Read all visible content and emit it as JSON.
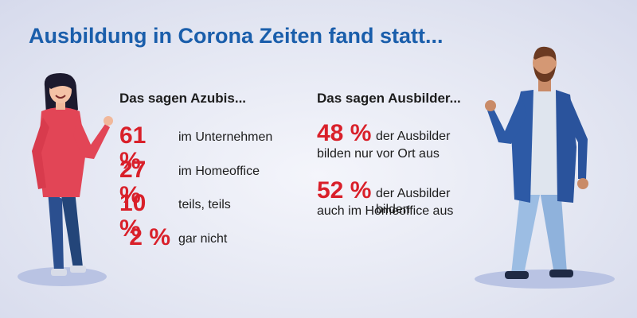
{
  "title": "Ausbildung in Corona Zeiten fand statt...",
  "azubis": {
    "heading": "Das sagen Azubis...",
    "items": [
      {
        "pct": "61 %",
        "label": "im Unternehmen"
      },
      {
        "pct": "27 %",
        "label": "im Homeoffice"
      },
      {
        "pct": "10 %",
        "label": "teils, teils"
      },
      {
        "pct": "2 %",
        "label": "gar nicht"
      }
    ]
  },
  "ausbilder": {
    "heading": "Das sagen Ausbilder...",
    "items": [
      {
        "pct": "48 %",
        "line1": "der Ausbilder",
        "line2": "bilden nur vor Ort aus"
      },
      {
        "pct": "52 %",
        "line1": "der Ausbilder bilden",
        "line2": "auch im Homeoffice aus"
      }
    ]
  },
  "colors": {
    "title": "#1a5eab",
    "percent": "#d9202a",
    "text": "#1c1c1c"
  },
  "illustrations": [
    "woman-figure",
    "man-figure"
  ]
}
